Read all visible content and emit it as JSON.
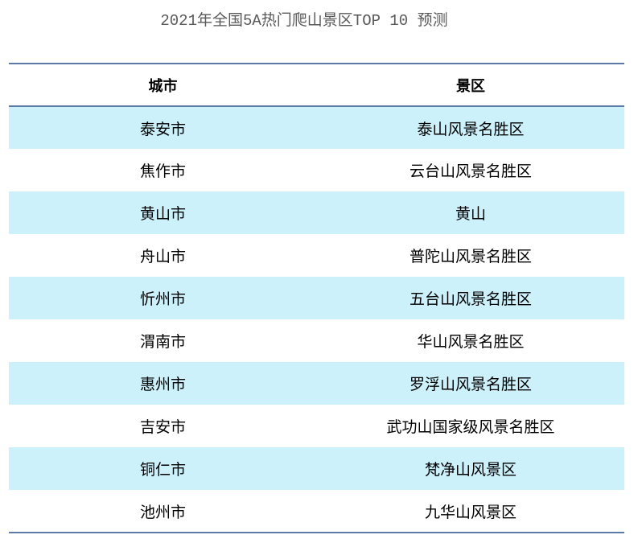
{
  "chart_data": {
    "type": "table",
    "title": "2021年全国5A热门爬山景区TOP 10 预测",
    "columns": [
      "城市",
      "景区"
    ],
    "rows": [
      [
        "泰安市",
        "泰山风景名胜区"
      ],
      [
        "焦作市",
        "云台山风景名胜区"
      ],
      [
        "黄山市",
        "黄山"
      ],
      [
        "舟山市",
        "普陀山风景名胜区"
      ],
      [
        "忻州市",
        "五台山风景名胜区"
      ],
      [
        "渭南市",
        "华山风景名胜区"
      ],
      [
        "惠州市",
        "罗浮山风景名胜区"
      ],
      [
        "吉安市",
        "武功山国家级风景名胜区"
      ],
      [
        "铜仁市",
        "梵净山风景区"
      ],
      [
        "池州市",
        "九华山风景区"
      ]
    ],
    "colors": {
      "stripe": "#ccf1fb",
      "border": "#5b7ba6",
      "title": "#595959"
    }
  }
}
